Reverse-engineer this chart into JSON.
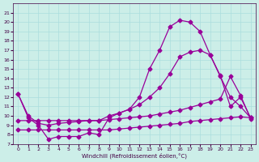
{
  "xlabel": "Windchill (Refroidissement éolien,°C)",
  "bg_color": "#cceee8",
  "grid_color": "#aadddd",
  "line_color": "#990099",
  "xlim": [
    -0.5,
    23.5
  ],
  "ylim": [
    7,
    22
  ],
  "xticks": [
    0,
    1,
    2,
    3,
    4,
    5,
    6,
    7,
    8,
    9,
    10,
    11,
    12,
    13,
    14,
    15,
    16,
    17,
    18,
    19,
    20,
    21,
    22,
    23
  ],
  "yticks": [
    7,
    8,
    9,
    10,
    11,
    12,
    13,
    14,
    15,
    16,
    17,
    18,
    19,
    20,
    21
  ],
  "line_top_x": [
    0,
    1,
    2,
    3,
    4,
    5,
    6,
    7,
    8,
    9,
    10,
    11,
    12,
    13,
    14,
    15,
    16,
    17,
    18,
    19,
    20,
    21,
    22,
    23
  ],
  "line_top_y": [
    12.3,
    9.8,
    9.0,
    7.5,
    7.8,
    7.8,
    7.8,
    8.2,
    8.0,
    9.8,
    10.3,
    10.7,
    12.0,
    15.0,
    17.0,
    19.5,
    20.2,
    20.0,
    19.0,
    16.5,
    14.3,
    11.0,
    12.0,
    9.8
  ],
  "line_mid_x": [
    0,
    1,
    2,
    3,
    4,
    5,
    6,
    7,
    8,
    9,
    10,
    11,
    12,
    13,
    14,
    15,
    16,
    17,
    18,
    19,
    20,
    21,
    22,
    23
  ],
  "line_mid_y": [
    12.3,
    10.0,
    9.2,
    9.0,
    9.2,
    9.3,
    9.4,
    9.5,
    9.5,
    10.0,
    10.3,
    10.7,
    11.2,
    12.0,
    13.0,
    14.5,
    16.3,
    16.8,
    17.0,
    16.5,
    14.2,
    12.0,
    11.0,
    9.8
  ],
  "line_flat1_x": [
    0,
    1,
    2,
    3,
    4,
    5,
    6,
    7,
    8,
    9,
    10,
    11,
    12,
    13,
    14,
    15,
    16,
    17,
    18,
    19,
    20,
    21,
    22,
    23
  ],
  "line_flat1_y": [
    9.5,
    9.5,
    9.5,
    9.5,
    9.5,
    9.5,
    9.5,
    9.5,
    9.5,
    9.6,
    9.7,
    9.8,
    9.9,
    10.0,
    10.2,
    10.4,
    10.6,
    10.9,
    11.2,
    11.5,
    11.8,
    14.2,
    12.2,
    9.7
  ],
  "line_flat2_x": [
    0,
    1,
    2,
    3,
    4,
    5,
    6,
    7,
    8,
    9,
    10,
    11,
    12,
    13,
    14,
    15,
    16,
    17,
    18,
    19,
    20,
    21,
    22,
    23
  ],
  "line_flat2_y": [
    8.5,
    8.5,
    8.5,
    8.5,
    8.5,
    8.5,
    8.5,
    8.5,
    8.5,
    8.5,
    8.6,
    8.7,
    8.8,
    8.9,
    9.0,
    9.1,
    9.2,
    9.4,
    9.5,
    9.6,
    9.7,
    9.8,
    9.9,
    9.8
  ]
}
